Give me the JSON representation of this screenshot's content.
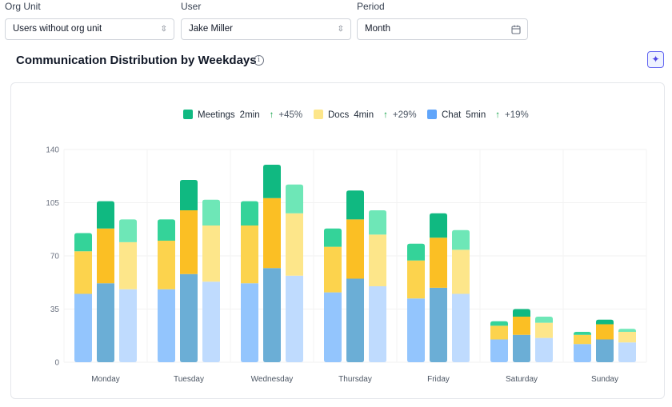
{
  "filters": {
    "org_unit": {
      "label": "Org Unit",
      "value": "Users without org unit"
    },
    "user": {
      "label": "User",
      "value": "Jake Miller"
    },
    "period": {
      "label": "Period",
      "value": "Month"
    }
  },
  "header": {
    "title": "Communication Distribution by Weekdays",
    "info_icon": "info-icon",
    "ai_icon": "sparkles-icon"
  },
  "legend": [
    {
      "name": "Meetings",
      "value": "2min",
      "delta": "+45%",
      "color": "#10b981"
    },
    {
      "name": "Docs",
      "value": "4min",
      "delta": "+29%",
      "color": "#fde68a"
    },
    {
      "name": "Chat",
      "value": "5min",
      "delta": "+19%",
      "color": "#60a5fa"
    }
  ],
  "chart_data": {
    "type": "bar",
    "stacked": true,
    "bars_per_category": 3,
    "categories": [
      "Monday",
      "Tuesday",
      "Wednesday",
      "Thursday",
      "Friday",
      "Saturday",
      "Sunday"
    ],
    "series": [
      {
        "name": "Chat",
        "values": [
          [
            45,
            52,
            48
          ],
          [
            48,
            58,
            53
          ],
          [
            52,
            62,
            57
          ],
          [
            46,
            55,
            50
          ],
          [
            42,
            49,
            45
          ],
          [
            15,
            18,
            16
          ],
          [
            12,
            15,
            13
          ]
        ]
      },
      {
        "name": "Docs",
        "values": [
          [
            28,
            36,
            31
          ],
          [
            32,
            42,
            37
          ],
          [
            38,
            46,
            41
          ],
          [
            30,
            39,
            34
          ],
          [
            25,
            33,
            29
          ],
          [
            9,
            12,
            10
          ],
          [
            6,
            10,
            7
          ]
        ]
      },
      {
        "name": "Meetings",
        "values": [
          [
            12,
            18,
            15
          ],
          [
            14,
            20,
            17
          ],
          [
            16,
            22,
            19
          ],
          [
            12,
            19,
            16
          ],
          [
            11,
            16,
            13
          ],
          [
            3,
            5,
            4
          ],
          [
            2,
            3,
            2
          ]
        ]
      }
    ],
    "colors": {
      "Chat": [
        "#93c5fd",
        "#6baed6",
        "#bfdbfe"
      ],
      "Docs": [
        "#fcd34d",
        "#fbbf24",
        "#fde68a"
      ],
      "Meetings": [
        "#34d399",
        "#10b981",
        "#6ee7b7"
      ]
    },
    "yticks": [
      0,
      35,
      70,
      105,
      140
    ],
    "ylim": [
      0,
      140
    ],
    "title": "Communication Distribution by Weekdays"
  }
}
